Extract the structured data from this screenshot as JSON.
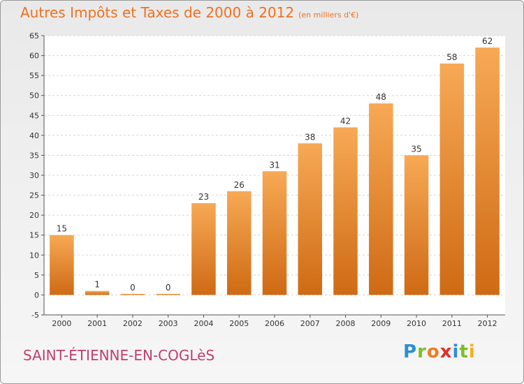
{
  "title": "Autres Impôts et Taxes de 2000 à 2012",
  "subtitle": "(en milliers d'€)",
  "commune": "SAINT-ÉTIENNE-EN-COGLèS",
  "logo": {
    "text": "Proxiti",
    "letters": [
      {
        "ch": "P",
        "color": "#2c8fd6"
      },
      {
        "ch": "r",
        "color": "#7cbf2a"
      },
      {
        "ch": "o",
        "color": "#f07a20"
      },
      {
        "ch": "x",
        "color": "#e0302a"
      },
      {
        "ch": "i",
        "color": "#2c8fd6"
      },
      {
        "ch": "t",
        "color": "#7cbf2a"
      },
      {
        "ch": "i",
        "color": "#f0b020"
      }
    ]
  },
  "colors": {
    "bar_top": "#f7a955",
    "bar_bottom": "#cf6a14",
    "grid": "#d5d5d5",
    "axis": "#555555",
    "title": "#f07020",
    "commune": "#c0406a"
  },
  "chart_data": {
    "type": "bar",
    "categories": [
      "2000",
      "2001",
      "2002",
      "2003",
      "2004",
      "2005",
      "2006",
      "2007",
      "2008",
      "2009",
      "2010",
      "2011",
      "2012"
    ],
    "values": [
      15,
      1,
      0,
      0,
      23,
      26,
      31,
      38,
      42,
      48,
      35,
      58,
      62
    ],
    "title": "Autres Impôts et Taxes de 2000 à 2012",
    "subtitle": "(en milliers d'€)",
    "ylim": [
      -5,
      65
    ],
    "yticks": [
      -5,
      0,
      5,
      10,
      15,
      20,
      25,
      30,
      35,
      40,
      45,
      50,
      55,
      60,
      65
    ],
    "grid": true
  }
}
